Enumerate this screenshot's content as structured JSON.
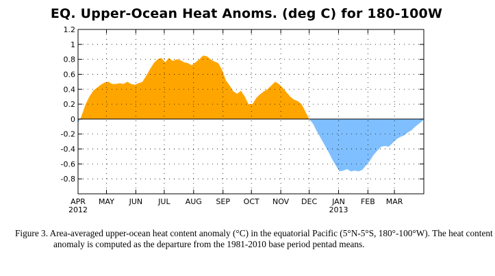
{
  "chart_data": {
    "type": "area",
    "title": "EQ. Upper-Ocean Heat Anoms. (deg C) for 180-100W",
    "xlabel": "",
    "ylabel": "",
    "ylim": [
      -1.0,
      1.2
    ],
    "yticks": [
      1.2,
      1,
      0.8,
      0.6,
      0.4,
      0.2,
      0,
      -0.2,
      -0.4,
      -0.6,
      -0.8
    ],
    "ytick_labels": [
      "1.2",
      "1",
      "0.8",
      "0.6",
      "0.4",
      "0.2",
      "0",
      "-0.2",
      "-0.4",
      "-0.6",
      "-0.8"
    ],
    "xlim_days": [
      0,
      365
    ],
    "months": [
      {
        "label": "APR",
        "year": "2012",
        "day": 0
      },
      {
        "label": "MAY",
        "year": "",
        "day": 30
      },
      {
        "label": "JUN",
        "year": "",
        "day": 61
      },
      {
        "label": "JUL",
        "year": "",
        "day": 91
      },
      {
        "label": "AUG",
        "year": "",
        "day": 122
      },
      {
        "label": "SEP",
        "year": "",
        "day": 153
      },
      {
        "label": "OCT",
        "year": "",
        "day": 183
      },
      {
        "label": "NOV",
        "year": "",
        "day": 214
      },
      {
        "label": "DEC",
        "year": "",
        "day": 244
      },
      {
        "label": "JAN",
        "year": "2013",
        "day": 275
      },
      {
        "label": "FEB",
        "year": "",
        "day": 306
      },
      {
        "label": "MAR",
        "year": "",
        "day": 334
      }
    ],
    "x": [
      0,
      3,
      8,
      12,
      16,
      20,
      24,
      28,
      32,
      36,
      40,
      44,
      48,
      52,
      56,
      60,
      64,
      68,
      72,
      76,
      80,
      84,
      88,
      92,
      96,
      100,
      104,
      108,
      112,
      116,
      120,
      124,
      128,
      132,
      136,
      140,
      144,
      148,
      152,
      156,
      160,
      164,
      168,
      172,
      176,
      180,
      184,
      188,
      192,
      196,
      200,
      204,
      208,
      212,
      216,
      220,
      224,
      228,
      232,
      236,
      240,
      244,
      248,
      252,
      256,
      260,
      264,
      268,
      272,
      276,
      280,
      284,
      288,
      292,
      296,
      300,
      304,
      308,
      312,
      316,
      320,
      324,
      328,
      332,
      336,
      340,
      344,
      348,
      352,
      356,
      360,
      364
    ],
    "values": [
      -0.05,
      0.02,
      0.2,
      0.3,
      0.38,
      0.42,
      0.46,
      0.49,
      0.5,
      0.47,
      0.47,
      0.48,
      0.47,
      0.5,
      0.47,
      0.46,
      0.48,
      0.5,
      0.58,
      0.67,
      0.75,
      0.8,
      0.82,
      0.76,
      0.82,
      0.78,
      0.8,
      0.79,
      0.76,
      0.75,
      0.72,
      0.76,
      0.8,
      0.85,
      0.84,
      0.8,
      0.77,
      0.75,
      0.66,
      0.52,
      0.45,
      0.37,
      0.34,
      0.38,
      0.3,
      0.2,
      0.2,
      0.28,
      0.33,
      0.37,
      0.4,
      0.45,
      0.5,
      0.47,
      0.42,
      0.36,
      0.3,
      0.26,
      0.24,
      0.2,
      0.1,
      0.0,
      -0.06,
      -0.16,
      -0.25,
      -0.34,
      -0.43,
      -0.53,
      -0.62,
      -0.7,
      -0.69,
      -0.67,
      -0.7,
      -0.69,
      -0.7,
      -0.68,
      -0.62,
      -0.56,
      -0.48,
      -0.42,
      -0.37,
      -0.36,
      -0.37,
      -0.32,
      -0.27,
      -0.24,
      -0.22,
      -0.18,
      -0.15,
      -0.1,
      -0.06,
      -0.02
    ],
    "positive_color": "#ffa500",
    "negative_color": "#7fbfff",
    "grid": true
  },
  "caption": {
    "text": "Figure 3. Area-averaged upper-ocean heat content anomaly (°C) in the equatorial Pacific (5°N-5°S, 180°-100°W). The heat content anomaly is computed as the departure from the 1981-2010  base period pentad means."
  }
}
